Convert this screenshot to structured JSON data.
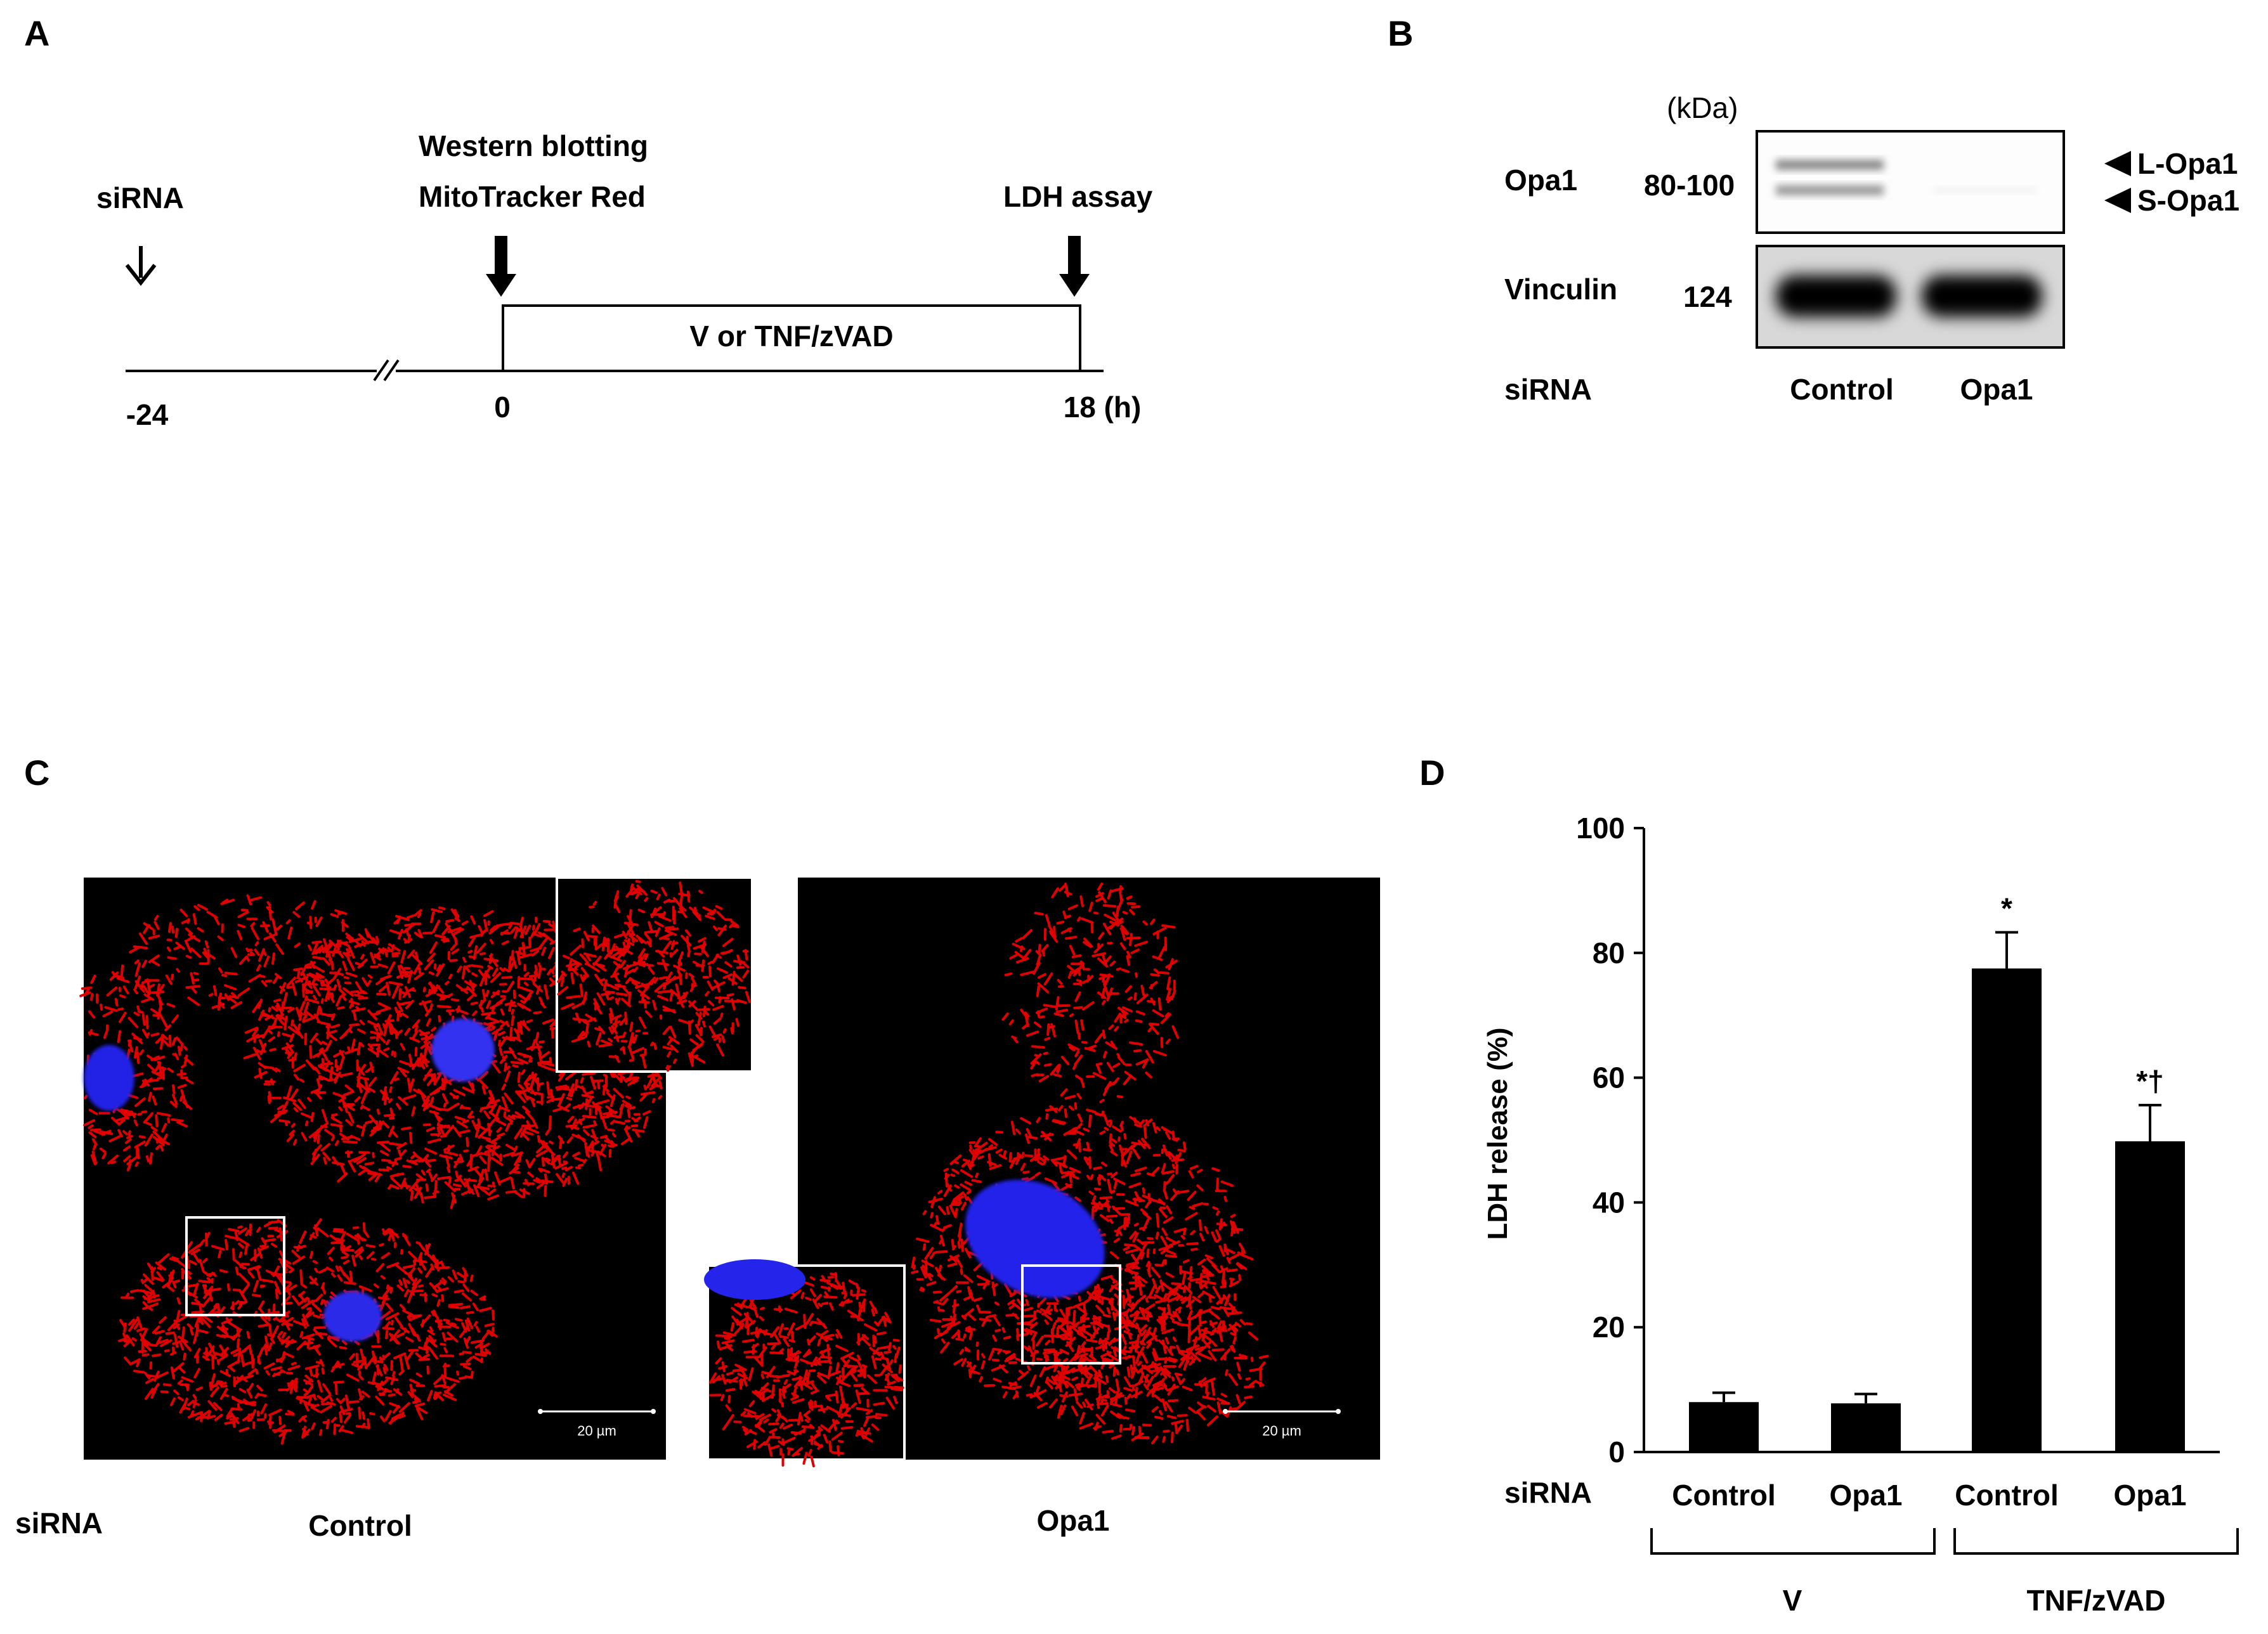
{
  "panels": {
    "a": "A",
    "b": "B",
    "c": "C",
    "d": "D"
  },
  "timeline": {
    "sirna_label": "siRNA",
    "wb_label": "Western blotting",
    "mito_label": "MitoTracker Red",
    "ldh_label": "LDH assay",
    "treatment_label": "V or TNF/zVAD",
    "tick_minus24": "-24",
    "tick_0": "0",
    "tick_18": "18 (h)"
  },
  "blot": {
    "kda_label": "(kDa)",
    "opa1_label": "Opa1",
    "opa1_mw": "80-100",
    "l_opa1": "L-Opa1",
    "s_opa1": "S-Opa1",
    "vinculin_label": "Vinculin",
    "vinculin_mw": "124",
    "sirna_label": "siRNA",
    "lane_control": "Control",
    "lane_opa1": "Opa1"
  },
  "microscopy": {
    "sirna_label": "siRNA",
    "control_label": "Control",
    "opa1_label": "Opa1",
    "scale_bar_left": "20 µm",
    "scale_bar_right": "20 µm"
  },
  "chart_data": {
    "type": "bar",
    "ylabel": "LDH release (%)",
    "ylim": [
      0,
      100
    ],
    "yticks": [
      "0",
      "20",
      "40",
      "60",
      "80",
      "100"
    ],
    "categories": [
      "Control",
      "Opa1",
      "Control",
      "Opa1"
    ],
    "values": [
      8,
      7.8,
      77.5,
      49.8
    ],
    "errors": [
      1.5,
      1.5,
      5.8,
      5.8
    ],
    "markers": [
      "",
      "",
      "*",
      "*†"
    ],
    "sirna_label": "siRNA",
    "groups": [
      {
        "label": "V",
        "members": [
          0,
          1
        ]
      },
      {
        "label": "TNF/zVAD",
        "members": [
          2,
          3
        ]
      }
    ],
    "bar_color": "#000000"
  }
}
